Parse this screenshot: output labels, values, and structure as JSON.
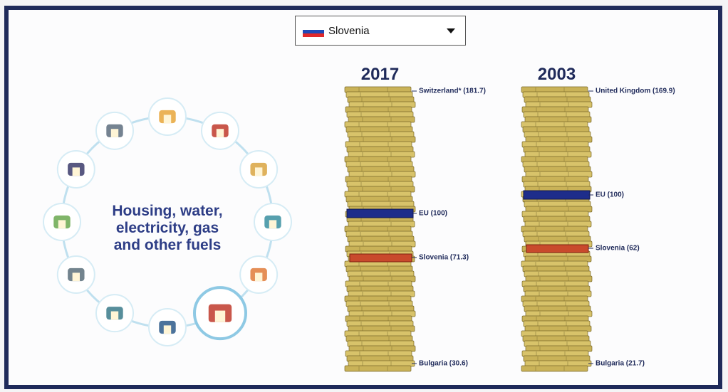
{
  "dropdown": {
    "selected": "Slovenia"
  },
  "category": {
    "lines": [
      "Housing, water,",
      "electricity, gas",
      "and other fuels"
    ]
  },
  "stacks": [
    {
      "year": "2017",
      "labels": {
        "top": "Switzerland* (181.7)",
        "eu": "EU (100)",
        "country": "Slovenia (71.3)",
        "bottom": "Bulgaria (30.6)"
      }
    },
    {
      "year": "2003",
      "labels": {
        "top": "United Kingdom (169.9)",
        "eu": "EU (100)",
        "country": "Slovenia (62)",
        "bottom": "Bulgaria (21.7)"
      }
    }
  ]
}
